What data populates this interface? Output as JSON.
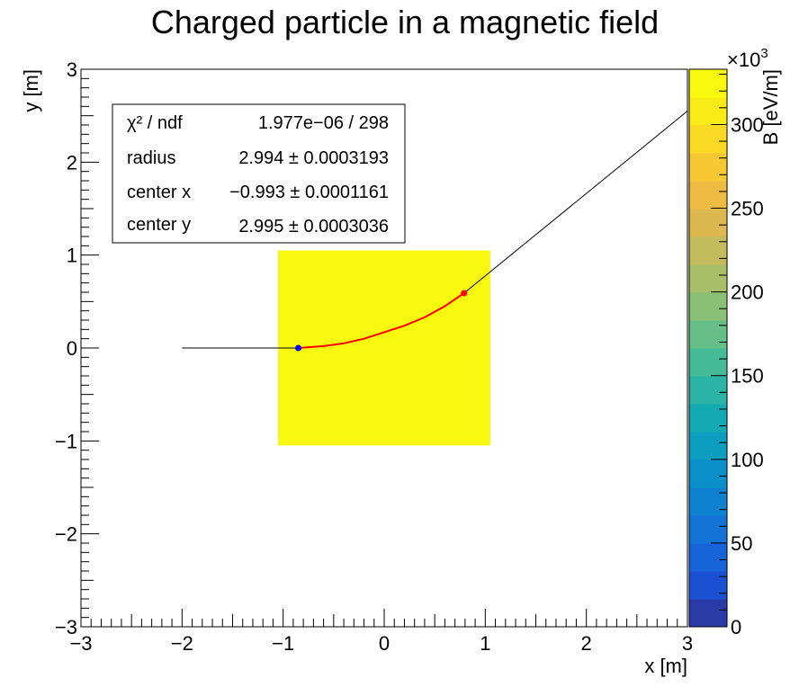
{
  "chart_data": {
    "type": "heatmap",
    "title": "Charged particle in a magnetic field",
    "xlabel": "x [m]",
    "ylabel": "y [m]",
    "xlim": [
      -3,
      3
    ],
    "ylim": [
      -3,
      3
    ],
    "x_ticks": [
      "−3",
      "−2",
      "−1",
      "0",
      "1",
      "2",
      "3"
    ],
    "y_ticks": [
      "−3",
      "−2",
      "−1",
      "0",
      "1",
      "2",
      "3"
    ],
    "colorbar": {
      "label": "B [eV/m]",
      "exponent_label": "×10",
      "exponent_value": "3",
      "range": [
        0,
        333
      ],
      "ticks": [
        "0",
        "50",
        "100",
        "150",
        "200",
        "250",
        "300"
      ],
      "tick_values": [
        0,
        50,
        100,
        150,
        200,
        250,
        300
      ]
    },
    "field_region": {
      "x": [
        -1.05,
        1.05
      ],
      "y": [
        -1.05,
        1.05
      ],
      "value": 333,
      "color": "#f9f90f"
    },
    "trajectory_in": {
      "x": [
        -2,
        -0.85
      ],
      "y": [
        0,
        0
      ],
      "color": "#000000"
    },
    "fit_arc": {
      "color": "#ff0000",
      "points": [
        [
          -0.85,
          0.0
        ],
        [
          -0.6,
          0.02
        ],
        [
          -0.4,
          0.05
        ],
        [
          -0.2,
          0.1
        ],
        [
          0.0,
          0.17
        ],
        [
          0.2,
          0.24
        ],
        [
          0.4,
          0.33
        ],
        [
          0.6,
          0.45
        ],
        [
          0.79,
          0.59
        ]
      ]
    },
    "trajectory_out": {
      "x": [
        0.79,
        3.0
      ],
      "y": [
        0.59,
        2.55
      ],
      "color": "#000000"
    },
    "markers": [
      {
        "x": -0.85,
        "y": 0.0,
        "color": "#0000ff"
      },
      {
        "x": 0.79,
        "y": 0.59,
        "color": "#ff0000"
      }
    ],
    "stats": [
      {
        "name": "χ² / ndf",
        "value": "1.977e−06 / 298"
      },
      {
        "name": "radius",
        "value": "2.994 ± 0.0003193"
      },
      {
        "name": "center x",
        "value": "−0.993 ± 0.0001161"
      },
      {
        "name": "center y",
        "value": "2.995 ± 0.0003036"
      }
    ],
    "palette": [
      "#2a3aa7",
      "#1a51d4",
      "#1763d9",
      "#1373d7",
      "#0e82d0",
      "#0a90c9",
      "#0b9ec1",
      "#14aab3",
      "#29b4a5",
      "#45bb96",
      "#66bf86",
      "#89c076",
      "#a8bf68",
      "#c4bc5c",
      "#dcb84e",
      "#eebc42",
      "#f8c833",
      "#fad925",
      "#f9eb17",
      "#f9f90f"
    ]
  }
}
